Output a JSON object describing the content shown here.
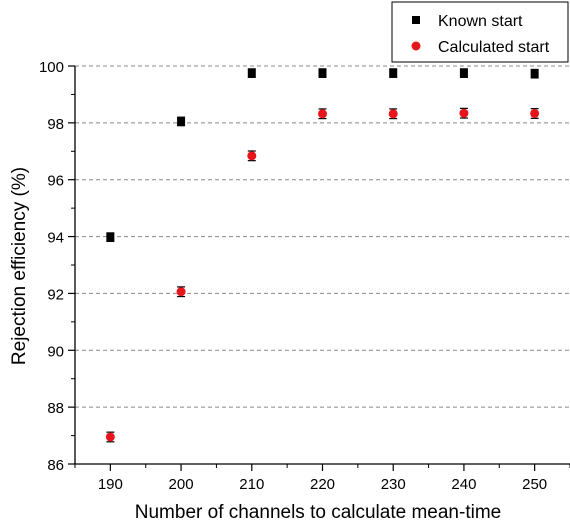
{
  "chart_data": {
    "type": "scatter",
    "xlabel": "Number of channels to calculate mean-time",
    "ylabel": "Rejection efficiency (%)",
    "xlim": [
      185,
      255
    ],
    "ylim": [
      86,
      100
    ],
    "x_ticks": [
      190,
      200,
      210,
      220,
      230,
      240,
      250
    ],
    "y_ticks": [
      86,
      88,
      90,
      92,
      94,
      96,
      98,
      100
    ],
    "x_tick_labels": [
      "190",
      "200",
      "210",
      "220",
      "230",
      "240",
      "250"
    ],
    "y_tick_labels": [
      "86",
      "88",
      "90",
      "92",
      "94",
      "96",
      "98",
      "100"
    ],
    "grid": "horizontal-dashed",
    "legend_position": "top-right",
    "series": [
      {
        "name": "Known start",
        "marker": "square",
        "color": "#000000",
        "x": [
          190,
          200,
          210,
          220,
          230,
          240,
          250
        ],
        "y": [
          93.98,
          98.05,
          99.75,
          99.75,
          99.75,
          99.75,
          99.73
        ],
        "error": [
          0.15,
          0.15,
          0.15,
          0.15,
          0.15,
          0.15,
          0.15
        ]
      },
      {
        "name": "Calculated start",
        "marker": "circle",
        "color": "#e8141b",
        "x": [
          190,
          200,
          210,
          220,
          230,
          240,
          250
        ],
        "y": [
          86.95,
          92.06,
          96.84,
          98.32,
          98.32,
          98.34,
          98.33
        ],
        "error": [
          0.17,
          0.17,
          0.17,
          0.17,
          0.17,
          0.17,
          0.17
        ]
      }
    ]
  }
}
